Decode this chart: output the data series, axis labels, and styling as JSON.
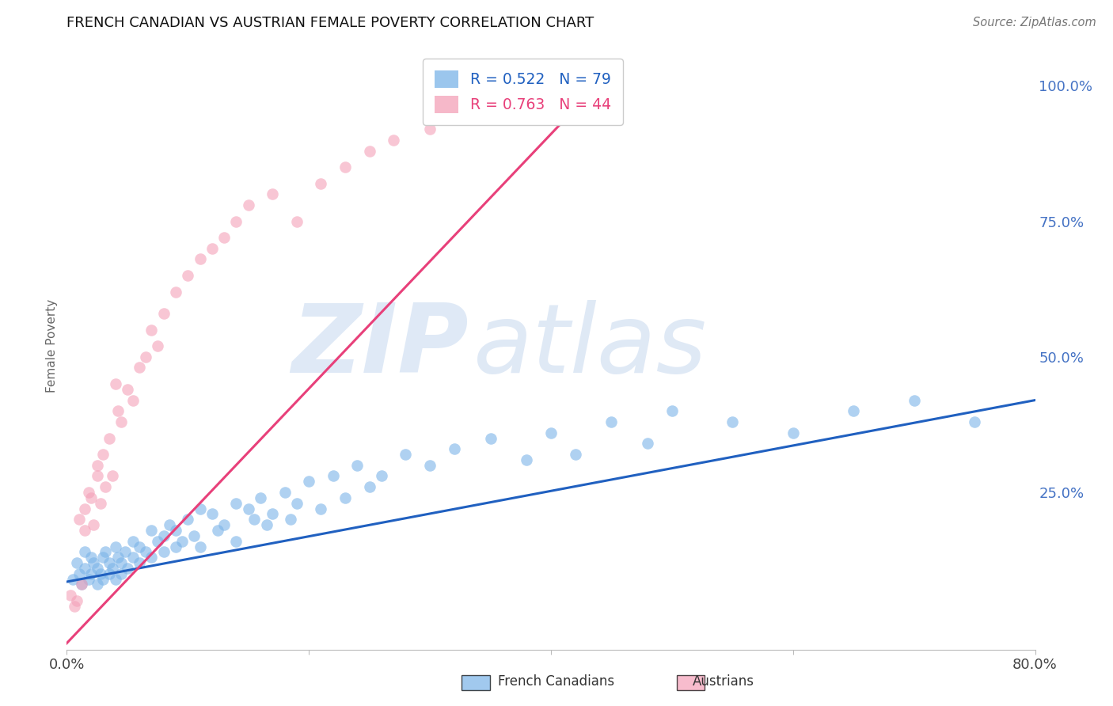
{
  "title": "FRENCH CANADIAN VS AUSTRIAN FEMALE POVERTY CORRELATION CHART",
  "source": "Source: ZipAtlas.com",
  "ylabel": "Female Poverty",
  "watermark_zip": "ZIP",
  "watermark_atlas": "atlas",
  "xlim": [
    0.0,
    0.8
  ],
  "ylim": [
    -0.04,
    1.08
  ],
  "y_ticks_right": [
    0.0,
    0.25,
    0.5,
    0.75,
    1.0
  ],
  "y_tick_labels_right": [
    "",
    "25.0%",
    "50.0%",
    "75.0%",
    "100.0%"
  ],
  "french_canadian_color": "#7ab3e8",
  "austrian_color": "#f4a0b8",
  "french_canadian_line_color": "#2060c0",
  "austrian_line_color": "#e8407a",
  "R_fc": 0.522,
  "N_fc": 79,
  "R_au": 0.763,
  "N_au": 44,
  "legend_fc_label": "French Canadians",
  "legend_au_label": "Austrians",
  "title_color": "#111111",
  "axis_label_color": "#666666",
  "right_tick_color": "#4472c4",
  "background_color": "#ffffff",
  "grid_color": "#d0d0d0",
  "fc_points_x": [
    0.005,
    0.008,
    0.01,
    0.012,
    0.015,
    0.015,
    0.018,
    0.02,
    0.02,
    0.022,
    0.025,
    0.025,
    0.028,
    0.03,
    0.03,
    0.032,
    0.035,
    0.035,
    0.038,
    0.04,
    0.04,
    0.042,
    0.045,
    0.045,
    0.048,
    0.05,
    0.055,
    0.055,
    0.06,
    0.06,
    0.065,
    0.07,
    0.07,
    0.075,
    0.08,
    0.08,
    0.085,
    0.09,
    0.09,
    0.095,
    0.1,
    0.105,
    0.11,
    0.11,
    0.12,
    0.125,
    0.13,
    0.14,
    0.14,
    0.15,
    0.155,
    0.16,
    0.165,
    0.17,
    0.18,
    0.185,
    0.19,
    0.2,
    0.21,
    0.22,
    0.23,
    0.24,
    0.25,
    0.26,
    0.28,
    0.3,
    0.32,
    0.35,
    0.38,
    0.4,
    0.42,
    0.45,
    0.48,
    0.5,
    0.55,
    0.6,
    0.65,
    0.7,
    0.75
  ],
  "fc_points_y": [
    0.09,
    0.12,
    0.1,
    0.08,
    0.11,
    0.14,
    0.09,
    0.13,
    0.1,
    0.12,
    0.08,
    0.11,
    0.1,
    0.13,
    0.09,
    0.14,
    0.1,
    0.12,
    0.11,
    0.15,
    0.09,
    0.13,
    0.12,
    0.1,
    0.14,
    0.11,
    0.16,
    0.13,
    0.15,
    0.12,
    0.14,
    0.18,
    0.13,
    0.16,
    0.17,
    0.14,
    0.19,
    0.15,
    0.18,
    0.16,
    0.2,
    0.17,
    0.22,
    0.15,
    0.21,
    0.18,
    0.19,
    0.23,
    0.16,
    0.22,
    0.2,
    0.24,
    0.19,
    0.21,
    0.25,
    0.2,
    0.23,
    0.27,
    0.22,
    0.28,
    0.24,
    0.3,
    0.26,
    0.28,
    0.32,
    0.3,
    0.33,
    0.35,
    0.31,
    0.36,
    0.32,
    0.38,
    0.34,
    0.4,
    0.38,
    0.36,
    0.4,
    0.42,
    0.38
  ],
  "au_points_x": [
    0.003,
    0.006,
    0.008,
    0.01,
    0.012,
    0.015,
    0.015,
    0.018,
    0.02,
    0.022,
    0.025,
    0.025,
    0.028,
    0.03,
    0.032,
    0.035,
    0.038,
    0.04,
    0.042,
    0.045,
    0.05,
    0.055,
    0.06,
    0.065,
    0.07,
    0.075,
    0.08,
    0.09,
    0.1,
    0.11,
    0.12,
    0.13,
    0.14,
    0.15,
    0.17,
    0.19,
    0.21,
    0.23,
    0.25,
    0.27,
    0.3,
    0.33,
    0.36,
    0.4
  ],
  "au_points_y": [
    0.06,
    0.04,
    0.05,
    0.2,
    0.08,
    0.22,
    0.18,
    0.25,
    0.24,
    0.19,
    0.28,
    0.3,
    0.23,
    0.32,
    0.26,
    0.35,
    0.28,
    0.45,
    0.4,
    0.38,
    0.44,
    0.42,
    0.48,
    0.5,
    0.55,
    0.52,
    0.58,
    0.62,
    0.65,
    0.68,
    0.7,
    0.72,
    0.75,
    0.78,
    0.8,
    0.75,
    0.82,
    0.85,
    0.88,
    0.9,
    0.92,
    0.95,
    0.98,
    1.0
  ],
  "fc_trendline_x": [
    0.0,
    0.8
  ],
  "fc_trendline_y": [
    0.085,
    0.42
  ],
  "au_trendline_x": [
    -0.005,
    0.455
  ],
  "au_trendline_y": [
    -0.04,
    1.04
  ]
}
